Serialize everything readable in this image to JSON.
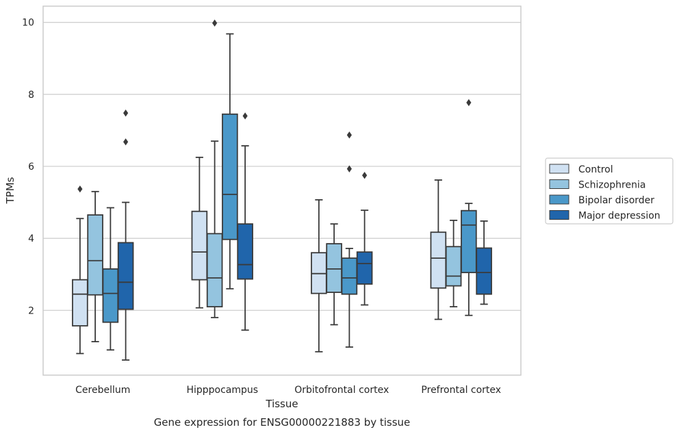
{
  "chart_data": {
    "type": "box",
    "title": "",
    "caption": "Gene expression for ENSG00000221883 by tissue",
    "xlabel": "Tissue",
    "ylabel": "TPMs",
    "ylim": [
      0.2,
      10.45
    ],
    "yticks": [
      2,
      4,
      6,
      8,
      10
    ],
    "grid": "horizontal",
    "legend_position": "right",
    "categories": [
      "Cerebellum",
      "Hipppocampus",
      "Orbitofrontal cortex",
      "Prefrontal cortex"
    ],
    "series": [
      {
        "name": "Control",
        "color": "#d0e1f2",
        "boxes": [
          {
            "whislo": 0.8,
            "q1": 1.57,
            "med": 2.45,
            "q3": 2.85,
            "whishi": 4.55,
            "fliers": [
              5.37
            ]
          },
          {
            "whislo": 2.07,
            "q1": 2.85,
            "med": 3.62,
            "q3": 4.75,
            "whishi": 6.25,
            "fliers": []
          },
          {
            "whislo": 0.85,
            "q1": 2.47,
            "med": 3.02,
            "q3": 3.6,
            "whishi": 5.07,
            "fliers": []
          },
          {
            "whislo": 1.75,
            "q1": 2.62,
            "med": 3.45,
            "q3": 4.17,
            "whishi": 5.62,
            "fliers": []
          }
        ]
      },
      {
        "name": "Schizophrenia",
        "color": "#94c4df",
        "boxes": [
          {
            "whislo": 1.13,
            "q1": 2.43,
            "med": 3.38,
            "q3": 4.65,
            "whishi": 5.3,
            "fliers": []
          },
          {
            "whislo": 1.8,
            "q1": 2.1,
            "med": 2.9,
            "q3": 4.13,
            "whishi": 6.7,
            "fliers": [
              9.98
            ]
          },
          {
            "whislo": 1.6,
            "q1": 2.5,
            "med": 3.15,
            "q3": 3.85,
            "whishi": 4.4,
            "fliers": []
          },
          {
            "whislo": 2.1,
            "q1": 2.68,
            "med": 2.95,
            "q3": 3.77,
            "whishi": 4.5,
            "fliers": []
          }
        ]
      },
      {
        "name": "Bipolar disorder",
        "color": "#4a98c9",
        "boxes": [
          {
            "whislo": 0.9,
            "q1": 1.67,
            "med": 2.47,
            "q3": 3.15,
            "whishi": 4.85,
            "fliers": []
          },
          {
            "whislo": 2.6,
            "q1": 3.97,
            "med": 5.22,
            "q3": 7.45,
            "whishi": 9.68,
            "fliers": []
          },
          {
            "whislo": 0.98,
            "q1": 2.45,
            "med": 2.9,
            "q3": 3.45,
            "whishi": 3.72,
            "fliers": [
              5.93,
              6.87
            ]
          },
          {
            "whislo": 1.86,
            "q1": 3.05,
            "med": 4.37,
            "q3": 4.77,
            "whishi": 4.97,
            "fliers": [
              7.77
            ]
          }
        ]
      },
      {
        "name": "Major depression",
        "color": "#2065ab",
        "boxes": [
          {
            "whislo": 0.62,
            "q1": 2.03,
            "med": 2.78,
            "q3": 3.88,
            "whishi": 5.0,
            "fliers": [
              6.68,
              7.48
            ]
          },
          {
            "whislo": 1.45,
            "q1": 2.87,
            "med": 3.27,
            "q3": 4.4,
            "whishi": 6.57,
            "fliers": [
              7.4
            ]
          },
          {
            "whislo": 2.15,
            "q1": 2.73,
            "med": 3.3,
            "q3": 3.62,
            "whishi": 4.78,
            "fliers": [
              5.75
            ]
          },
          {
            "whislo": 2.17,
            "q1": 2.45,
            "med": 3.05,
            "q3": 3.73,
            "whishi": 4.48,
            "fliers": []
          }
        ]
      }
    ]
  }
}
